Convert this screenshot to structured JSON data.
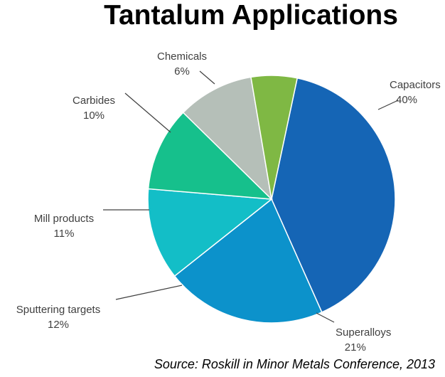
{
  "chart_data": {
    "type": "pie",
    "title": "Tantalum Applications",
    "source": "Source: Roskill in Minor Metals Conference, 2013",
    "slices": [
      {
        "label": "Capacitors",
        "value": 40,
        "value_label": "40%",
        "color": "#1565b5"
      },
      {
        "label": "Superalloys",
        "value": 21,
        "value_label": "21%",
        "color": "#0c92cb"
      },
      {
        "label": "Sputtering targets",
        "value": 12,
        "value_label": "12%",
        "color": "#13bec7"
      },
      {
        "label": "Mill products",
        "value": 11,
        "value_label": "11%",
        "color": "#16c08c"
      },
      {
        "label": "Carbides",
        "value": 10,
        "value_label": "10%",
        "color": "#b5bfb8"
      },
      {
        "label": "Chemicals",
        "value": 6,
        "value_label": "6%",
        "color": "#7fb844"
      }
    ],
    "start_angle_deg": 12,
    "direction": "clockwise",
    "legend": "none",
    "labels": "outside with leader lines"
  }
}
